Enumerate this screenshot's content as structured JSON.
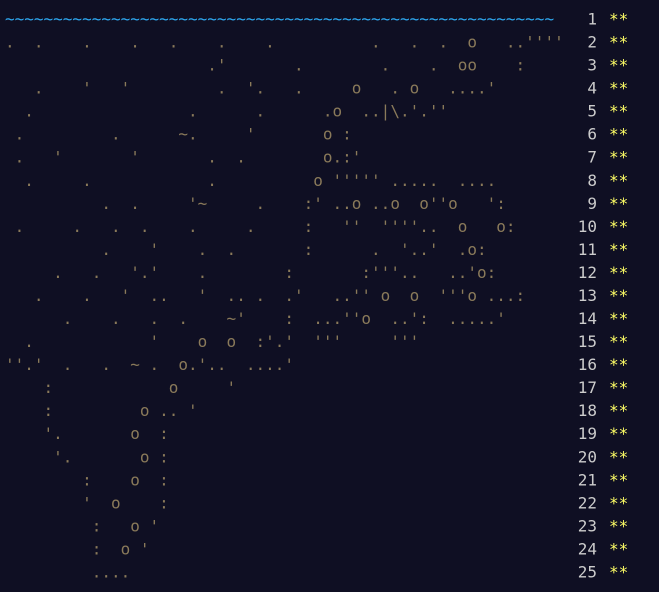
{
  "rows": [
    {
      "art": "~~~~~~~~~~~~~~~~~~~~~~~~~~~~~~~~~~~~~~~~~~~~~~~~~~~~~~~~~",
      "day": "1",
      "stars": "**"
    },
    {
      "art": ".  .    .    .   .    .    .          .   .  .  o   ..''''",
      "day": "2",
      "stars": "**"
    },
    {
      "art": "                     .'       .        .    .  oo    :    ",
      "day": "3",
      "stars": "**"
    },
    {
      "art": "   .    '   '         .  '.   .     o   . o   ....'      ",
      "day": "4",
      "stars": "**"
    },
    {
      "art": "  .                .      .      .o  ..|\\.'.''          ",
      "day": "5",
      "stars": "**"
    },
    {
      "art": " .         .      ~.     '       o :                     ",
      "day": "6",
      "stars": "**"
    },
    {
      "art": " .   '       '       .  .        o.:'                    ",
      "day": "7",
      "stars": "**"
    },
    {
      "art": "  .     .            .          o ''''' .....  ....      ",
      "day": "8",
      "stars": "**"
    },
    {
      "art": "          .  .     '~     .    :' ..o ..o  o''o   ':     ",
      "day": "9",
      "stars": "**"
    },
    {
      "art": " .     .   .  .    .     .     :   ''  ''''..  o   o:    ",
      "day": "10",
      "stars": "**"
    },
    {
      "art": "          .    '    .  .       :      .  '..'  .o:       ",
      "day": "11",
      "stars": "**"
    },
    {
      "art": "     .   .   '.'    .        :       :'''..   ..'o:      ",
      "day": "12",
      "stars": "**"
    },
    {
      "art": "   .    .   '  ..   '  .. .  .'   ..'' o  o  '''o ...:   ",
      "day": "13",
      "stars": "**"
    },
    {
      "art": "      .    .   .  .    ~'    :  ...''o  ..':  .....'     ",
      "day": "14",
      "stars": "**"
    },
    {
      "art": "  .            '    o  o  :'.'  '''     '''              ",
      "day": "15",
      "stars": "**"
    },
    {
      "art": "''.'  .   .  ~ .  o.'..  ....'                           ",
      "day": "16",
      "stars": "**"
    },
    {
      "art": "    :            o     '                                 ",
      "day": "17",
      "stars": "**"
    },
    {
      "art": "    :         o .. '                                     ",
      "day": "18",
      "stars": "**"
    },
    {
      "art": "    '.       o  :                                        ",
      "day": "19",
      "stars": "**"
    },
    {
      "art": "     '.       o :                                        ",
      "day": "20",
      "stars": "**"
    },
    {
      "art": "        :    o  :                                        ",
      "day": "21",
      "stars": "**"
    },
    {
      "art": "        '  o    :                                        ",
      "day": "22",
      "stars": "**"
    },
    {
      "art": "         :   o '                                         ",
      "day": "23",
      "stars": "**"
    },
    {
      "art": "         :  o '                                          ",
      "day": "24",
      "stars": "**"
    },
    {
      "art": "         ....                                            ",
      "day": "25",
      "stars": "**"
    }
  ]
}
